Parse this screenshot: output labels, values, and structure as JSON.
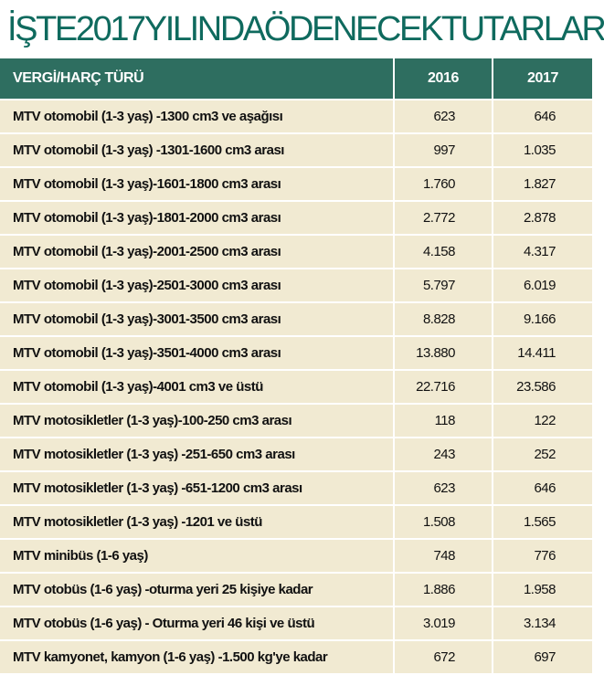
{
  "title": "İŞTE2017YILINDAÖDENECEKTUTARLAR",
  "table": {
    "headers": [
      "VERGİ/HARÇ TÜRÜ",
      "2016",
      "2017"
    ],
    "rows": [
      {
        "name": "MTV otomobil (1-3 yaş) -1300 cm3 ve aşağısı",
        "y2016": "623",
        "y2017": "646"
      },
      {
        "name": "MTV otomobil (1-3 yaş) -1301-1600 cm3 arası",
        "y2016": "997",
        "y2017": "1.035"
      },
      {
        "name": "MTV otomobil (1-3 yaş)-1601-1800 cm3 arası",
        "y2016": "1.760",
        "y2017": "1.827"
      },
      {
        "name": "MTV otomobil (1-3 yaş)-1801-2000 cm3 arası",
        "y2016": "2.772",
        "y2017": "2.878"
      },
      {
        "name": "MTV otomobil (1-3 yaş)-2001-2500 cm3 arası",
        "y2016": "4.158",
        "y2017": "4.317"
      },
      {
        "name": "MTV otomobil (1-3 yaş)-2501-3000 cm3 arası",
        "y2016": "5.797",
        "y2017": "6.019"
      },
      {
        "name": "MTV otomobil (1-3 yaş)-3001-3500 cm3 arası",
        "y2016": "8.828",
        "y2017": "9.166"
      },
      {
        "name": "MTV otomobil (1-3 yaş)-3501-4000 cm3 arası",
        "y2016": "13.880",
        "y2017": "14.411"
      },
      {
        "name": "MTV otomobil (1-3 yaş)-4001 cm3 ve üstü",
        "y2016": "22.716",
        "y2017": "23.586"
      },
      {
        "name": "MTV motosikletler (1-3 yaş)-100-250 cm3 arası",
        "y2016": "118",
        "y2017": "122"
      },
      {
        "name": "MTV motosikletler (1-3 yaş) -251-650 cm3 arası",
        "y2016": "243",
        "y2017": "252"
      },
      {
        "name": "MTV motosikletler (1-3 yaş) -651-1200 cm3 arası",
        "y2016": "623",
        "y2017": "646"
      },
      {
        "name": "MTV motosikletler (1-3 yaş) -1201 ve üstü",
        "y2016": "1.508",
        "y2017": "1.565"
      },
      {
        "name": "MTV minibüs (1-6 yaş)",
        "y2016": "748",
        "y2017": "776"
      },
      {
        "name": "MTV otobüs (1-6 yaş) -oturma yeri 25 kişiye kadar",
        "y2016": "1.886",
        "y2017": "1.958"
      },
      {
        "name": "MTV otobüs (1-6 yaş) - Oturma yeri 46 kişi ve üstü",
        "y2016": "3.019",
        "y2017": "3.134"
      },
      {
        "name": "MTV kamyonet, kamyon (1-6 yaş) -1.500 kg'ye kadar",
        "y2016": "672",
        "y2017": "697"
      }
    ]
  },
  "colors": {
    "title_text": "#0f6a5e",
    "header_bg": "#2e6e60",
    "header_text": "#ffffff",
    "row_bg": "#f1ead2",
    "grid": "#ffffff"
  }
}
